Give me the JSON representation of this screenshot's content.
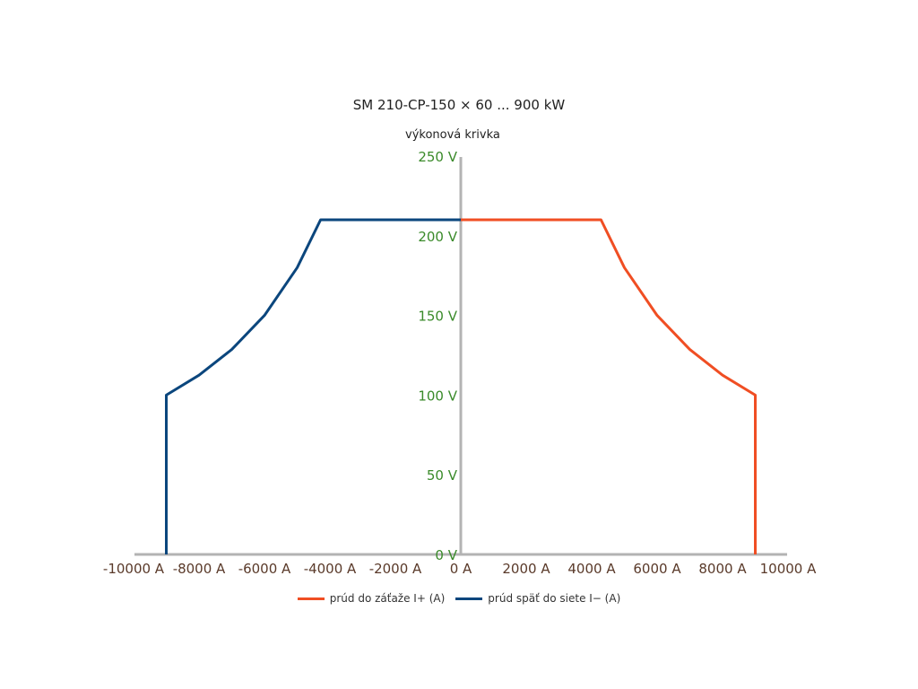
{
  "chart_data": {
    "type": "line",
    "title": "SM 210-CP-150 × 60 ... 900 kW",
    "subtitle": "výkonová krivka",
    "xlim": [
      -10000,
      10000
    ],
    "ylim": [
      0,
      250
    ],
    "x_ticks": [
      -10000,
      -8000,
      -6000,
      -4000,
      -2000,
      0,
      2000,
      4000,
      6000,
      8000,
      10000
    ],
    "x_tick_labels": [
      "-10000 A",
      "-8000 A",
      "-6000 A",
      "-4000 A",
      "-2000 A",
      "0 A",
      "2000 A",
      "4000 A",
      "6000 A",
      "8000 A",
      "10000 A"
    ],
    "y_ticks": [
      0,
      50,
      100,
      150,
      200,
      250
    ],
    "y_tick_labels": [
      "0 V",
      "50 V",
      "100 V",
      "150 V",
      "200 V",
      "250 V"
    ],
    "grid": false,
    "legend_position": "bottom",
    "series": [
      {
        "name": "prúd do záťaže I+ (A)",
        "color": "#f04e23",
        "x": [
          0,
          4286,
          5000,
          6000,
          7000,
          8000,
          9000,
          9000
        ],
        "y": [
          210,
          210,
          180,
          150,
          128.6,
          112.5,
          100,
          0
        ]
      },
      {
        "name": "prúd späť do siete I− (A)",
        "color": "#0b467d",
        "x": [
          0,
          -4286,
          -5000,
          -6000,
          -7000,
          -8000,
          -9000,
          -9000
        ],
        "y": [
          210,
          210,
          180,
          150,
          128.6,
          112.5,
          100,
          0
        ]
      }
    ],
    "colors": {
      "axis": "#b3b3b3",
      "x_tick_text": "#5a3a2a",
      "y_tick_text": "#3a8a2a"
    }
  }
}
